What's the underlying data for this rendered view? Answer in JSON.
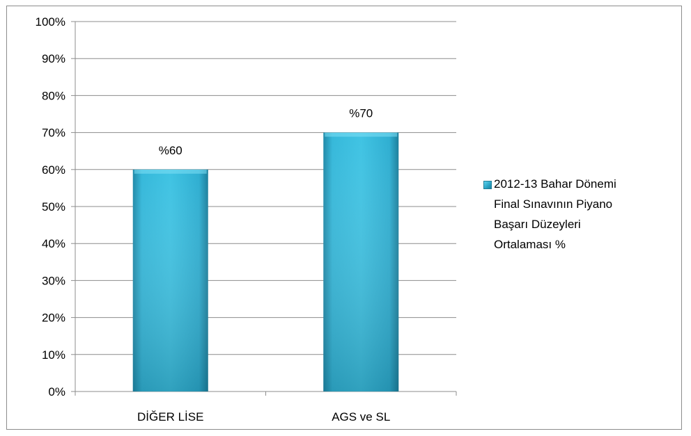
{
  "chart_data": {
    "type": "bar",
    "categories": [
      "DİĞER LİSE",
      "AGS ve SL"
    ],
    "series": [
      {
        "name": "2012-13  Bahar Dönemi\nFinal Sınavının Piyano\nBaşarı Düzeyleri\nOrtalaması %",
        "values": [
          60,
          70
        ],
        "data_labels": [
          "%60",
          "%70"
        ],
        "color": "#31b3d6"
      }
    ],
    "y_ticks": [
      "0%",
      "10%",
      "20%",
      "30%",
      "40%",
      "50%",
      "60%",
      "70%",
      "80%",
      "90%",
      "100%"
    ],
    "ylim": [
      0,
      100
    ],
    "grid": true,
    "legend_position": "right"
  }
}
